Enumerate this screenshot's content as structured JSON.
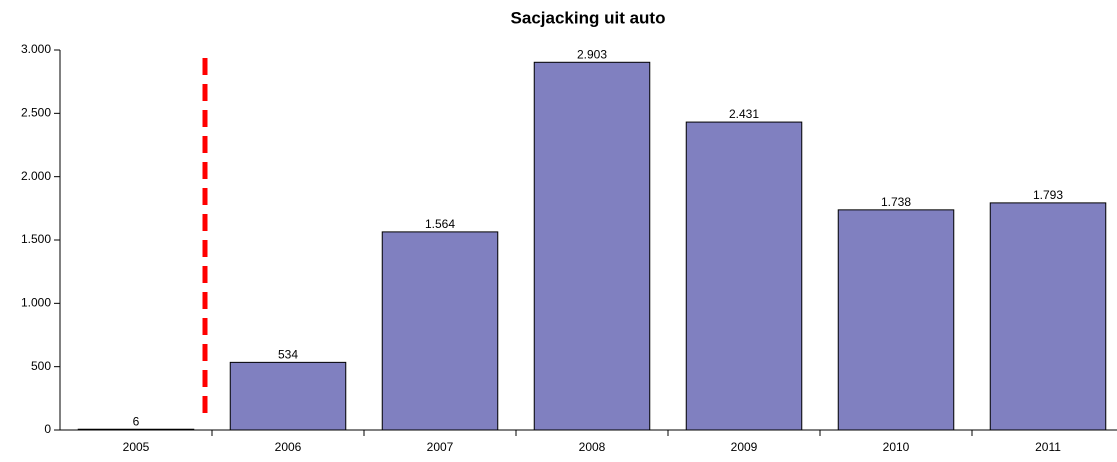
{
  "chart_data": {
    "type": "bar",
    "title": "Sacjacking uit auto",
    "categories": [
      "2005",
      "2006",
      "2007",
      "2008",
      "2009",
      "2010",
      "2011"
    ],
    "values": [
      6,
      534,
      1564,
      2903,
      2431,
      1738,
      1793
    ],
    "value_labels": [
      "6",
      "534",
      "1.564",
      "2.903",
      "2.431",
      "1.738",
      "1.793"
    ],
    "color": "#8080c0",
    "ylim": [
      0,
      3000
    ],
    "yticks": [
      0,
      500,
      {
        "value": 1000,
        "label": "1.000"
      },
      {
        "value": 1500,
        "label": "1.500"
      },
      {
        "value": 2000,
        "label": "2.000"
      },
      {
        "value": 2500,
        "label": "2.500"
      },
      {
        "value": 3000,
        "label": "3.000"
      }
    ],
    "grid": false
  }
}
